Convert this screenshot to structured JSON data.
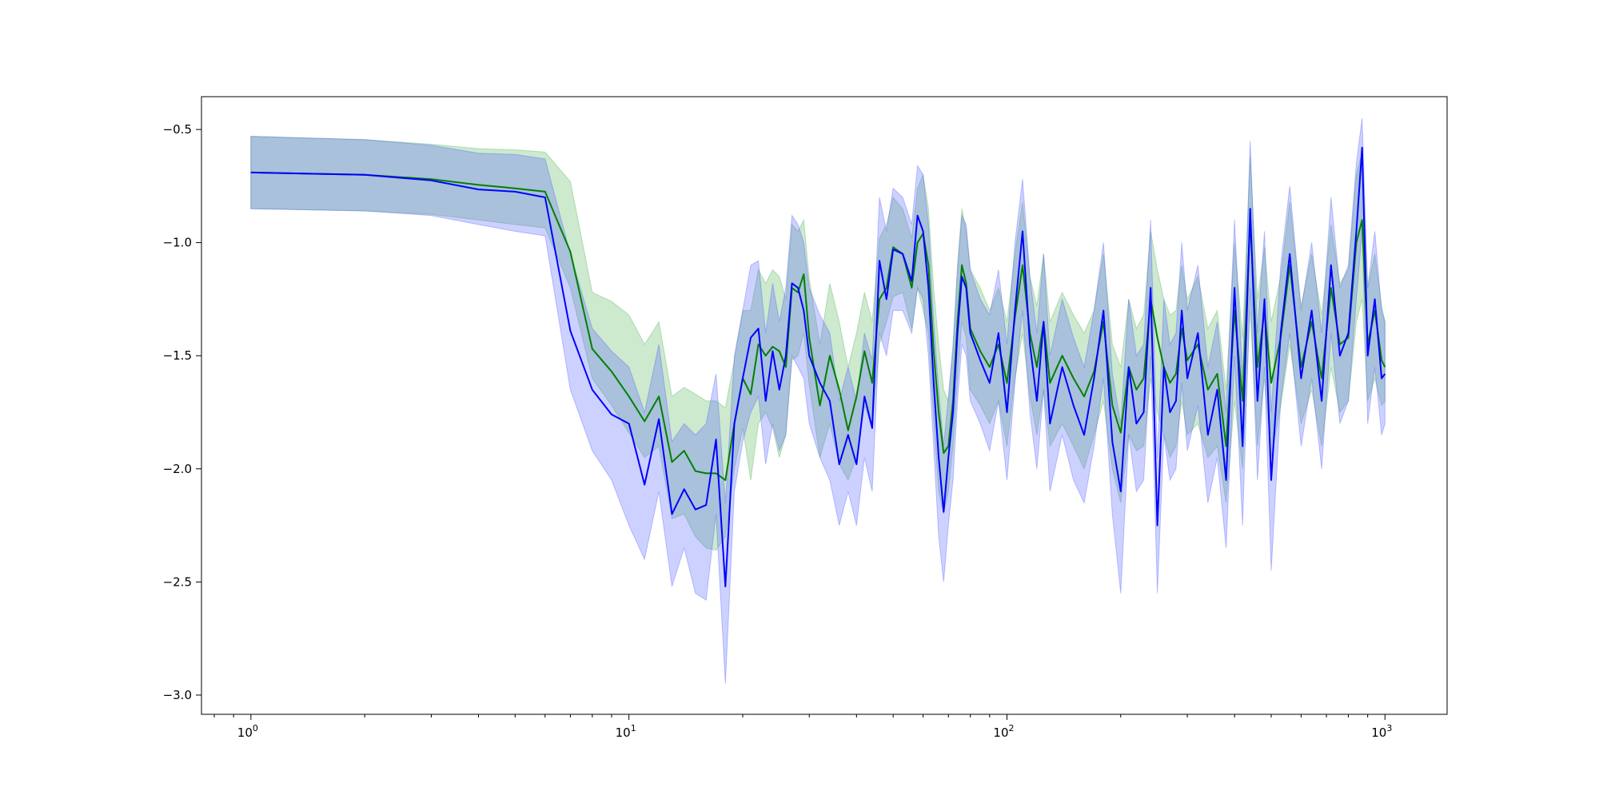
{
  "chart_data": {
    "type": "line",
    "title": "",
    "xlabel": "",
    "ylabel": "",
    "xscale": "log",
    "xlim": [
      0.74,
      1460
    ],
    "ylim": [
      -3.085,
      -0.355
    ],
    "grid": false,
    "x_ticks": [
      {
        "value": 1,
        "base": "10",
        "exp": "0"
      },
      {
        "value": 10,
        "base": "10",
        "exp": "1"
      },
      {
        "value": 100,
        "base": "10",
        "exp": "2"
      },
      {
        "value": 1000,
        "base": "10",
        "exp": "3"
      }
    ],
    "y_ticks": [
      {
        "value": -0.5,
        "label": "−0.5"
      },
      {
        "value": -1.0,
        "label": "−1.0"
      },
      {
        "value": -1.5,
        "label": "−1.5"
      },
      {
        "value": -2.0,
        "label": "−2.0"
      },
      {
        "value": -2.5,
        "label": "−2.5"
      },
      {
        "value": -3.0,
        "label": "−3.0"
      }
    ],
    "series": [
      {
        "color": "#008000",
        "band_color": "#4caf50",
        "band_opacity": 0.28,
        "x": [
          1,
          2,
          3,
          4,
          5,
          6,
          7,
          8,
          9,
          10,
          11,
          12,
          13,
          14,
          15,
          16,
          17,
          18,
          19,
          20,
          21,
          22,
          23,
          24,
          25,
          26,
          27,
          28,
          29,
          30,
          32,
          34,
          36,
          38,
          40,
          42,
          44,
          46,
          48,
          50,
          53,
          56,
          58,
          60,
          62,
          64,
          66,
          68,
          70,
          72,
          74,
          76,
          78,
          80,
          85,
          90,
          95,
          100,
          105,
          110,
          115,
          120,
          125,
          130,
          140,
          150,
          160,
          170,
          180,
          190,
          200,
          210,
          220,
          230,
          240,
          250,
          260,
          270,
          280,
          290,
          300,
          320,
          340,
          360,
          380,
          400,
          420,
          440,
          460,
          480,
          500,
          530,
          560,
          600,
          640,
          680,
          720,
          760,
          800,
          840,
          870,
          900,
          940,
          980,
          1000
        ],
        "y": [
          -0.69,
          -0.7,
          -0.72,
          -0.745,
          -0.76,
          -0.775,
          -1.04,
          -1.47,
          -1.57,
          -1.68,
          -1.79,
          -1.68,
          -1.97,
          -1.92,
          -2.01,
          -2.02,
          -2.02,
          -2.05,
          -1.8,
          -1.6,
          -1.67,
          -1.45,
          -1.5,
          -1.46,
          -1.48,
          -1.55,
          -1.2,
          -1.22,
          -1.14,
          -1.42,
          -1.72,
          -1.5,
          -1.65,
          -1.83,
          -1.68,
          -1.48,
          -1.62,
          -1.25,
          -1.2,
          -1.02,
          -1.05,
          -1.2,
          -1.0,
          -0.96,
          -1.1,
          -1.48,
          -1.75,
          -1.93,
          -1.9,
          -1.7,
          -1.35,
          -1.1,
          -1.18,
          -1.38,
          -1.48,
          -1.55,
          -1.45,
          -1.62,
          -1.33,
          -1.1,
          -1.4,
          -1.55,
          -1.35,
          -1.62,
          -1.5,
          -1.6,
          -1.68,
          -1.57,
          -1.35,
          -1.72,
          -1.84,
          -1.55,
          -1.65,
          -1.6,
          -1.25,
          -1.42,
          -1.55,
          -1.62,
          -1.58,
          -1.38,
          -1.52,
          -1.45,
          -1.65,
          -1.58,
          -1.9,
          -1.3,
          -1.7,
          -0.9,
          -1.55,
          -1.3,
          -1.62,
          -1.42,
          -1.1,
          -1.55,
          -1.35,
          -1.6,
          -1.2,
          -1.45,
          -1.42,
          -1.0,
          -0.9,
          -1.45,
          -1.3,
          -1.52,
          -1.55
        ],
        "low": [
          -0.85,
          -0.86,
          -0.875,
          -0.9,
          -0.92,
          -0.935,
          -1.2,
          -1.6,
          -1.72,
          -1.84,
          -1.95,
          -1.9,
          -2.22,
          -2.2,
          -2.3,
          -2.35,
          -2.36,
          -2.3,
          -2.0,
          -1.82,
          -2.05,
          -1.8,
          -1.75,
          -1.82,
          -1.95,
          -1.85,
          -1.52,
          -1.5,
          -1.4,
          -1.63,
          -1.95,
          -1.8,
          -1.98,
          -2.05,
          -1.95,
          -1.72,
          -1.82,
          -1.45,
          -1.35,
          -1.24,
          -1.22,
          -1.38,
          -1.2,
          -1.3,
          -1.4,
          -1.78,
          -2.1,
          -2.2,
          -2.1,
          -1.9,
          -1.6,
          -1.35,
          -1.42,
          -1.65,
          -1.72,
          -1.8,
          -1.7,
          -1.9,
          -1.6,
          -1.4,
          -1.68,
          -1.85,
          -1.65,
          -1.9,
          -1.8,
          -1.9,
          -2.0,
          -1.85,
          -1.7,
          -2.0,
          -2.15,
          -1.85,
          -1.92,
          -1.9,
          -1.6,
          -1.75,
          -1.85,
          -1.95,
          -1.9,
          -1.7,
          -1.85,
          -1.8,
          -1.95,
          -1.9,
          -2.15,
          -1.7,
          -2.0,
          -1.3,
          -1.9,
          -1.6,
          -1.95,
          -1.72,
          -1.45,
          -1.8,
          -1.65,
          -1.9,
          -1.55,
          -1.75,
          -1.7,
          -1.35,
          -1.25,
          -1.7,
          -1.6,
          -1.72,
          -1.7
        ],
        "high": [
          -0.53,
          -0.545,
          -0.565,
          -0.585,
          -0.59,
          -0.6,
          -0.73,
          -1.22,
          -1.26,
          -1.32,
          -1.45,
          -1.35,
          -1.68,
          -1.64,
          -1.67,
          -1.7,
          -1.7,
          -1.73,
          -1.52,
          -1.3,
          -1.3,
          -1.12,
          -1.18,
          -1.12,
          -1.15,
          -1.25,
          -0.92,
          -0.95,
          -0.9,
          -1.16,
          -1.45,
          -1.18,
          -1.35,
          -1.55,
          -1.4,
          -1.22,
          -1.35,
          -0.98,
          -0.92,
          -0.8,
          -0.85,
          -0.98,
          -0.76,
          -0.7,
          -0.85,
          -1.2,
          -1.45,
          -1.65,
          -1.7,
          -1.48,
          -1.1,
          -0.85,
          -0.95,
          -1.12,
          -1.2,
          -1.3,
          -1.2,
          -1.35,
          -1.05,
          -0.82,
          -1.15,
          -1.28,
          -1.05,
          -1.35,
          -1.22,
          -1.32,
          -1.4,
          -1.3,
          -1.05,
          -1.45,
          -1.55,
          -1.25,
          -1.38,
          -1.32,
          -0.95,
          -1.12,
          -1.25,
          -1.32,
          -1.3,
          -1.1,
          -1.25,
          -1.15,
          -1.38,
          -1.3,
          -1.65,
          -1.0,
          -1.42,
          -0.62,
          -1.25,
          -1.02,
          -1.35,
          -1.15,
          -0.82,
          -1.28,
          -1.05,
          -1.32,
          -0.92,
          -1.18,
          -1.12,
          -0.7,
          -0.6,
          -1.2,
          -1.05,
          -1.28,
          -1.35
        ]
      },
      {
        "color": "#0000ff",
        "band_color": "#4a5aff",
        "band_opacity": 0.28,
        "x": [
          1,
          2,
          3,
          4,
          5,
          6,
          7,
          8,
          9,
          10,
          11,
          12,
          13,
          14,
          15,
          16,
          17,
          18,
          19,
          20,
          21,
          22,
          23,
          24,
          25,
          26,
          27,
          28,
          29,
          30,
          32,
          34,
          36,
          38,
          40,
          42,
          44,
          46,
          48,
          50,
          53,
          56,
          58,
          60,
          62,
          64,
          66,
          68,
          70,
          72,
          74,
          76,
          78,
          80,
          85,
          90,
          95,
          100,
          105,
          110,
          115,
          120,
          125,
          130,
          140,
          150,
          160,
          170,
          180,
          190,
          200,
          210,
          220,
          230,
          240,
          250,
          260,
          270,
          280,
          290,
          300,
          320,
          340,
          360,
          380,
          400,
          420,
          440,
          460,
          480,
          500,
          530,
          560,
          600,
          640,
          680,
          720,
          760,
          800,
          840,
          870,
          900,
          940,
          980,
          1000
        ],
        "y": [
          -0.69,
          -0.7,
          -0.725,
          -0.765,
          -0.775,
          -0.8,
          -1.39,
          -1.65,
          -1.76,
          -1.8,
          -2.07,
          -1.78,
          -2.2,
          -2.09,
          -2.18,
          -2.16,
          -1.87,
          -2.52,
          -1.8,
          -1.6,
          -1.42,
          -1.38,
          -1.7,
          -1.48,
          -1.65,
          -1.5,
          -1.18,
          -1.2,
          -1.3,
          -1.5,
          -1.62,
          -1.7,
          -1.98,
          -1.85,
          -1.98,
          -1.68,
          -1.82,
          -1.08,
          -1.25,
          -1.03,
          -1.05,
          -1.17,
          -0.88,
          -0.95,
          -1.2,
          -1.62,
          -1.95,
          -2.19,
          -1.95,
          -1.75,
          -1.4,
          -1.15,
          -1.2,
          -1.4,
          -1.52,
          -1.62,
          -1.4,
          -1.75,
          -1.3,
          -0.95,
          -1.45,
          -1.7,
          -1.35,
          -1.8,
          -1.55,
          -1.72,
          -1.85,
          -1.6,
          -1.3,
          -1.88,
          -2.1,
          -1.55,
          -1.8,
          -1.75,
          -1.2,
          -2.25,
          -1.55,
          -1.75,
          -1.7,
          -1.3,
          -1.6,
          -1.4,
          -1.85,
          -1.65,
          -2.05,
          -1.2,
          -1.9,
          -0.85,
          -1.7,
          -1.25,
          -2.05,
          -1.4,
          -1.05,
          -1.6,
          -1.3,
          -1.7,
          -1.1,
          -1.5,
          -1.4,
          -0.95,
          -0.58,
          -1.5,
          -1.25,
          -1.6,
          -1.58
        ],
        "low": [
          -0.85,
          -0.86,
          -0.88,
          -0.92,
          -0.95,
          -0.97,
          -1.65,
          -1.92,
          -2.05,
          -2.25,
          -2.4,
          -2.1,
          -2.52,
          -2.35,
          -2.55,
          -2.58,
          -2.2,
          -2.95,
          -2.1,
          -1.88,
          -1.75,
          -1.68,
          -1.98,
          -1.8,
          -1.92,
          -1.85,
          -1.5,
          -1.55,
          -1.6,
          -1.8,
          -1.95,
          -2.05,
          -2.25,
          -2.1,
          -2.25,
          -1.95,
          -2.1,
          -1.4,
          -1.5,
          -1.3,
          -1.3,
          -1.4,
          -1.2,
          -1.25,
          -1.5,
          -1.9,
          -2.3,
          -2.5,
          -2.25,
          -2.05,
          -1.7,
          -1.45,
          -1.5,
          -1.7,
          -1.8,
          -1.92,
          -1.7,
          -2.05,
          -1.62,
          -1.3,
          -1.75,
          -2.0,
          -1.65,
          -2.1,
          -1.85,
          -2.05,
          -2.15,
          -1.9,
          -1.6,
          -2.2,
          -2.55,
          -1.85,
          -2.1,
          -2.05,
          -1.5,
          -2.55,
          -1.85,
          -2.05,
          -2.0,
          -1.62,
          -1.92,
          -1.72,
          -2.15,
          -1.95,
          -2.35,
          -1.5,
          -2.25,
          -1.2,
          -2.05,
          -1.55,
          -2.45,
          -1.7,
          -1.4,
          -1.9,
          -1.6,
          -2.0,
          -1.4,
          -1.8,
          -1.7,
          -1.25,
          -0.95,
          -1.8,
          -1.55,
          -1.85,
          -1.8
        ],
        "high": [
          -0.53,
          -0.545,
          -0.57,
          -0.605,
          -0.61,
          -0.63,
          -1.05,
          -1.38,
          -1.48,
          -1.55,
          -1.75,
          -1.45,
          -1.88,
          -1.8,
          -1.85,
          -1.8,
          -1.58,
          -2.15,
          -1.5,
          -1.3,
          -1.1,
          -1.08,
          -1.4,
          -1.18,
          -1.35,
          -1.2,
          -0.88,
          -0.92,
          -1.0,
          -1.2,
          -1.32,
          -1.4,
          -1.7,
          -1.55,
          -1.7,
          -1.4,
          -1.52,
          -0.8,
          -0.95,
          -0.76,
          -0.8,
          -0.92,
          -0.66,
          -0.7,
          -0.92,
          -1.35,
          -1.65,
          -1.9,
          -1.68,
          -1.45,
          -1.12,
          -0.88,
          -0.92,
          -1.12,
          -1.25,
          -1.32,
          -1.12,
          -1.45,
          -1.0,
          -0.72,
          -1.15,
          -1.4,
          -1.05,
          -1.5,
          -1.25,
          -1.42,
          -1.55,
          -1.3,
          -1.0,
          -1.58,
          -1.8,
          -1.25,
          -1.5,
          -1.45,
          -0.9,
          -1.95,
          -1.25,
          -1.45,
          -1.4,
          -1.0,
          -1.3,
          -1.1,
          -1.55,
          -1.35,
          -1.75,
          -0.9,
          -1.6,
          -0.55,
          -1.4,
          -0.95,
          -1.75,
          -1.1,
          -0.75,
          -1.3,
          -1.0,
          -1.4,
          -0.8,
          -1.2,
          -1.1,
          -0.65,
          -0.45,
          -1.2,
          -0.95,
          -1.3,
          -1.35
        ]
      }
    ]
  }
}
